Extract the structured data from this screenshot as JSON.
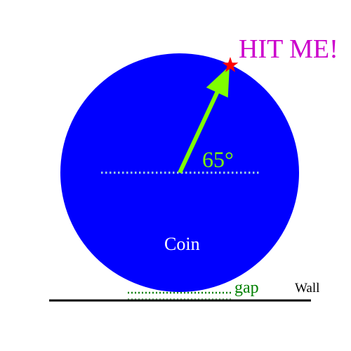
{
  "colors": {
    "background": "#ffffff",
    "coin_fill": "#0000ff",
    "arrow": "#7fff00",
    "angle_label": "#7fff00",
    "dotted_reference": "#a8d8d8",
    "star": "#ff0000",
    "hit_label": "#cc00cc",
    "coin_label": "#ffffff",
    "gap_marker": "#008000",
    "wall": "#000000"
  },
  "labels": {
    "hit_me": "HIT ME!",
    "angle": "65°",
    "coin": "Coin",
    "gap": "gap",
    "wall": "Wall"
  },
  "diagram": {
    "angle_degrees": 65,
    "icons": {
      "target": "star-icon",
      "direction": "arrow-icon"
    }
  }
}
